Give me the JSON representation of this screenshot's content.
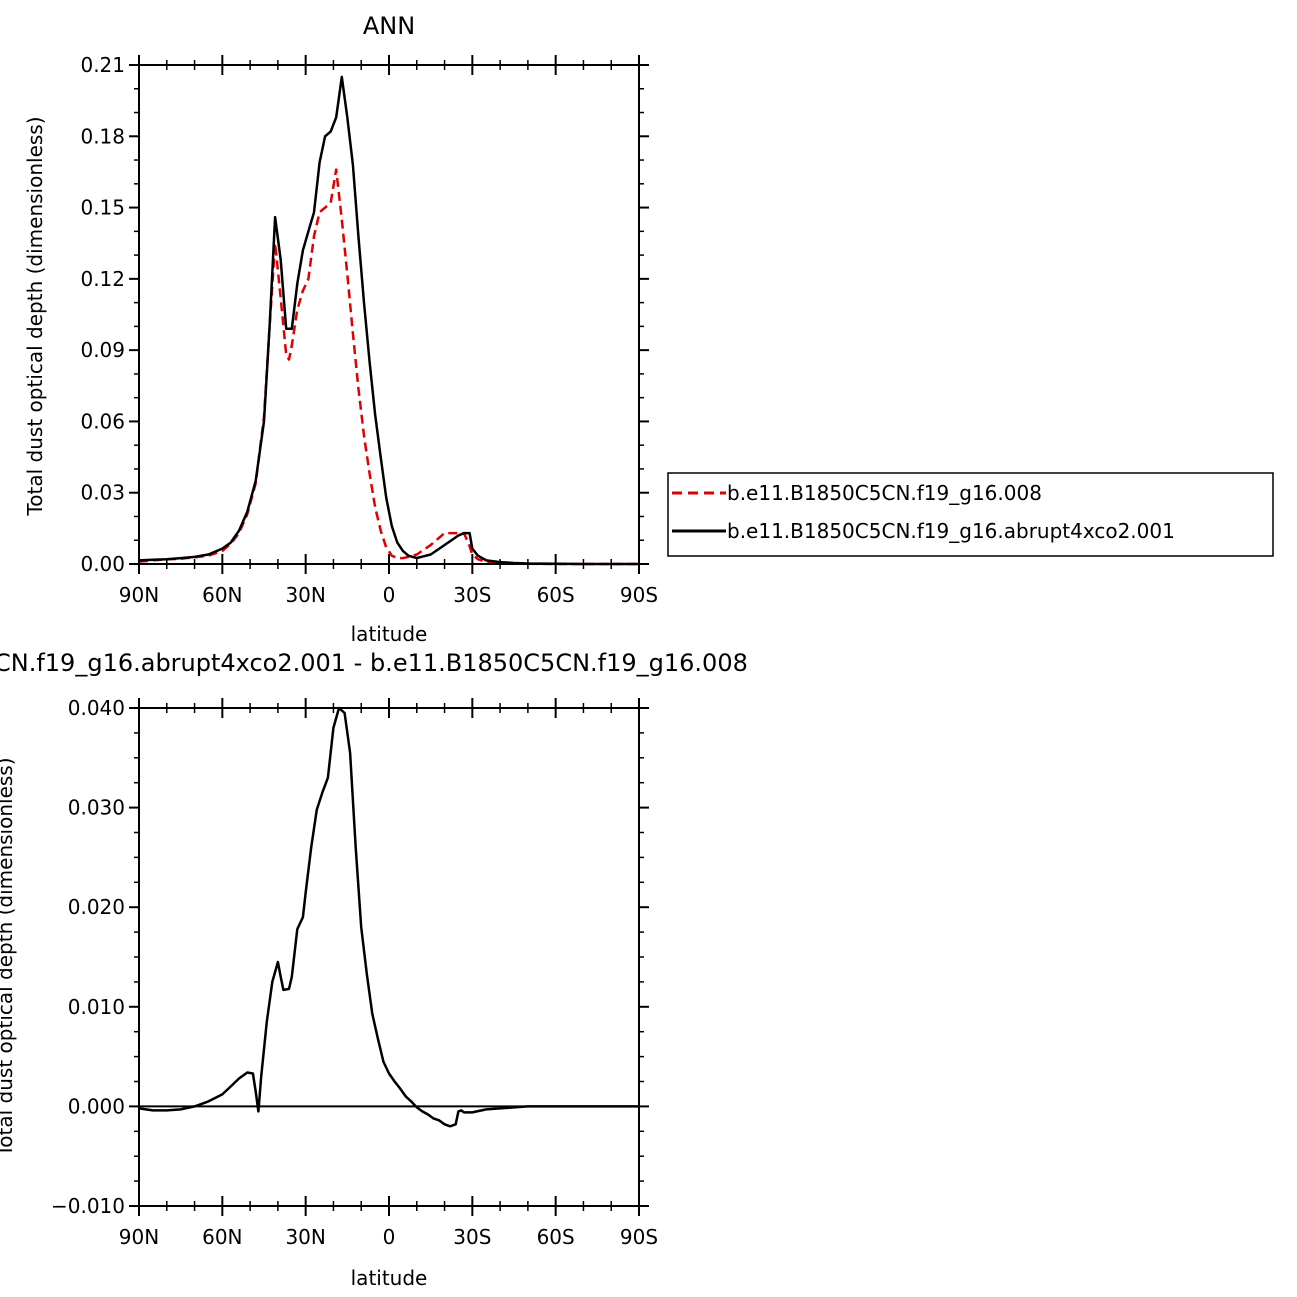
{
  "chart_data": [
    {
      "type": "line",
      "title": "ANN",
      "xlabel": "latitude",
      "ylabel": "Total dust optical depth (dimensionless)",
      "xlim": [
        90,
        -90
      ],
      "ylim": [
        0.0,
        0.21
      ],
      "x_ticks": [
        90,
        60,
        30,
        0,
        -30,
        -60,
        -90
      ],
      "x_tick_labels": [
        "90N",
        "60N",
        "30N",
        "0",
        "30S",
        "60S",
        "90S"
      ],
      "y_ticks": [
        0.0,
        0.03,
        0.06,
        0.09,
        0.12,
        0.15,
        0.18,
        0.21
      ],
      "y_tick_labels": [
        "0.00",
        "0.03",
        "0.06",
        "0.09",
        "0.12",
        "0.15",
        "0.18",
        "0.21"
      ],
      "legend_position": "right",
      "series": [
        {
          "name": "b.e11.B1850C5CN.f19_g16.008",
          "color": "#e00000",
          "dash": "dashed",
          "x": [
            90,
            85,
            80,
            75,
            70,
            65,
            60,
            57,
            54,
            51,
            48,
            45,
            43,
            41,
            39,
            37,
            36,
            35,
            33,
            31,
            29,
            27,
            25,
            23,
            21,
            19,
            17,
            15,
            13,
            11,
            9,
            7,
            5,
            3,
            1,
            -1,
            -3,
            -5,
            -7,
            -10,
            -15,
            -20,
            -25,
            -27,
            -29,
            -30,
            -32,
            -35,
            -40,
            -45,
            -50,
            -60,
            -70,
            -80,
            -90
          ],
          "y": [
            0.001,
            0.0015,
            0.002,
            0.0022,
            0.0028,
            0.0035,
            0.0055,
            0.0085,
            0.013,
            0.021,
            0.034,
            0.062,
            0.1,
            0.135,
            0.112,
            0.088,
            0.086,
            0.092,
            0.107,
            0.115,
            0.12,
            0.138,
            0.148,
            0.15,
            0.152,
            0.166,
            0.145,
            0.122,
            0.097,
            0.074,
            0.054,
            0.038,
            0.024,
            0.014,
            0.007,
            0.0035,
            0.0025,
            0.0025,
            0.003,
            0.004,
            0.008,
            0.013,
            0.013,
            0.013,
            0.0075,
            0.004,
            0.002,
            0.0008,
            0.0003,
            0.0002,
            0.0001,
            0,
            0,
            0,
            0
          ]
        },
        {
          "name": "b.e11.B1850C5CN.f19_g16.abrupt4xco2.001",
          "color": "#000000",
          "dash": "solid",
          "x": [
            90,
            85,
            80,
            75,
            70,
            65,
            60,
            57,
            54,
            51,
            48,
            45,
            43,
            41,
            39,
            37,
            35,
            33,
            31,
            29,
            27,
            25,
            23,
            21,
            19,
            17,
            15,
            13,
            11,
            9,
            7,
            5,
            3,
            1,
            -1,
            -3,
            -5,
            -7,
            -10,
            -15,
            -20,
            -25,
            -27,
            -29,
            -30,
            -32,
            -35,
            -40,
            -45,
            -50,
            -60,
            -70,
            -80,
            -90
          ],
          "y": [
            0.0015,
            0.0018,
            0.002,
            0.0025,
            0.003,
            0.004,
            0.0065,
            0.009,
            0.014,
            0.022,
            0.035,
            0.06,
            0.1,
            0.146,
            0.128,
            0.099,
            0.099,
            0.118,
            0.132,
            0.14,
            0.148,
            0.169,
            0.18,
            0.182,
            0.188,
            0.205,
            0.188,
            0.168,
            0.138,
            0.11,
            0.085,
            0.063,
            0.045,
            0.028,
            0.016,
            0.009,
            0.0055,
            0.0035,
            0.0025,
            0.004,
            0.008,
            0.012,
            0.013,
            0.013,
            0.0065,
            0.0035,
            0.0015,
            0.0008,
            0.0004,
            0.0002,
            0.0001,
            0,
            0,
            0
          ]
        }
      ]
    },
    {
      "type": "line",
      "title": "CN.f19_g16.abrupt4xco2.001 - b.e11.B1850C5CN.f19_g16.008",
      "xlabel": "latitude",
      "ylabel": "Total dust optical depth (dimensionless)",
      "xlim": [
        90,
        -90
      ],
      "ylim": [
        -0.01,
        0.04
      ],
      "x_ticks": [
        90,
        60,
        30,
        0,
        -30,
        -60,
        -90
      ],
      "x_tick_labels": [
        "90N",
        "60N",
        "30N",
        "0",
        "30S",
        "60S",
        "90S"
      ],
      "y_ticks": [
        -0.01,
        0.0,
        0.01,
        0.02,
        0.03,
        0.04
      ],
      "y_tick_labels": [
        "-0.010",
        "0.000",
        "0.010",
        "0.020",
        "0.030",
        "0.040"
      ],
      "series": [
        {
          "color": "#000000",
          "dash": "solid",
          "x": [
            90,
            85,
            80,
            75,
            70,
            65,
            60,
            57,
            54,
            51,
            49,
            48,
            47,
            46,
            44,
            42,
            40,
            39,
            38,
            36,
            35,
            33,
            31,
            30,
            28,
            26,
            24,
            22,
            20,
            18,
            16,
            14,
            12,
            10,
            8,
            6,
            4,
            2,
            0,
            -2,
            -4,
            -6,
            -8,
            -10,
            -12,
            -14,
            -16,
            -18,
            -20,
            -22,
            -24,
            -25,
            -26,
            -27,
            -30,
            -35,
            -40,
            -45,
            -50,
            -60,
            -70,
            -80,
            -90
          ],
          "y": [
            -0.0002,
            -0.0004,
            -0.0004,
            -0.0003,
            0.0,
            0.0005,
            0.0012,
            0.002,
            0.0028,
            0.0034,
            0.0033,
            0.0015,
            -0.0005,
            0.003,
            0.0085,
            0.0125,
            0.0145,
            0.013,
            0.0117,
            0.0118,
            0.013,
            0.0178,
            0.019,
            0.0215,
            0.026,
            0.0298,
            0.0315,
            0.033,
            0.038,
            0.04,
            0.0395,
            0.0355,
            0.026,
            0.018,
            0.0133,
            0.0093,
            0.0068,
            0.0045,
            0.0033,
            0.0025,
            0.0018,
            0.001,
            0.0005,
            -0.0001,
            -0.0005,
            -0.0008,
            -0.0012,
            -0.0014,
            -0.0018,
            -0.002,
            -0.0018,
            -0.0005,
            -0.0004,
            -0.0006,
            -0.0006,
            -0.0003,
            -0.0002,
            -0.0001,
            0,
            0,
            0,
            0,
            0
          ]
        }
      ]
    }
  ]
}
